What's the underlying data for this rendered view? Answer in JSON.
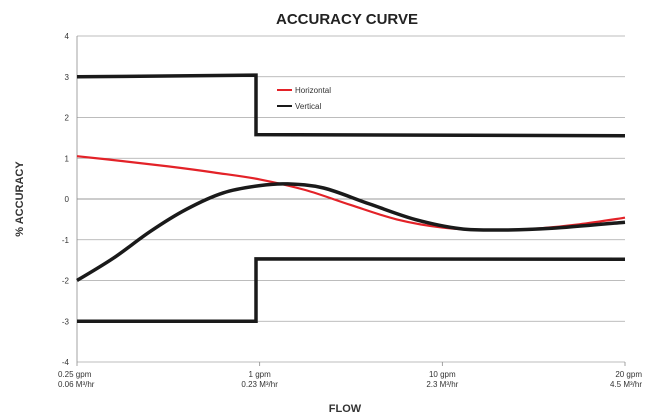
{
  "chart_data": {
    "type": "line",
    "title": "ACCURACY CURVE",
    "xlabel": "FLOW",
    "ylabel": "% ACCURACY",
    "ylim": [
      -4,
      4
    ],
    "yticks": [
      "4",
      "3",
      "2",
      "1",
      "0",
      "-1",
      "-2",
      "-3",
      "-4"
    ],
    "xticks": [
      {
        "line1": "0.25 gpm",
        "line2": "0.06 M³/hr"
      },
      {
        "line1": "1 gpm",
        "line2": "0.23 M³/hr"
      },
      {
        "line1": "10 gpm",
        "line2": "2.3 M³/hr"
      },
      {
        "line1": "20 gpm",
        "line2": "4.5 M³/hr"
      }
    ],
    "x_axis_note": "x positions are in tick-index units: 0 = 0.25 gpm, 1 = 1 gpm, 2 = 10 gpm, 3 = 20 gpm",
    "grid": "horizontal",
    "legend_position": "top-center",
    "series": [
      {
        "name": "Horizontal",
        "color": "#e32228",
        "points": [
          [
            0,
            1.05
          ],
          [
            0.25,
            0.93
          ],
          [
            0.5,
            0.8
          ],
          [
            0.75,
            0.65
          ],
          [
            1.0,
            0.48
          ],
          [
            1.25,
            0.22
          ],
          [
            1.5,
            -0.15
          ],
          [
            1.75,
            -0.5
          ],
          [
            2.0,
            -0.7
          ],
          [
            2.25,
            -0.76
          ],
          [
            2.5,
            -0.73
          ],
          [
            2.75,
            -0.62
          ],
          [
            3.0,
            -0.46
          ]
        ]
      },
      {
        "name": "Vertical",
        "color": "#1a1a1a",
        "points": [
          [
            0,
            -2.0
          ],
          [
            0.2,
            -1.45
          ],
          [
            0.4,
            -0.8
          ],
          [
            0.6,
            -0.25
          ],
          [
            0.8,
            0.15
          ],
          [
            1.0,
            0.33
          ],
          [
            1.15,
            0.37
          ],
          [
            1.35,
            0.27
          ],
          [
            1.6,
            -0.12
          ],
          [
            1.85,
            -0.5
          ],
          [
            2.1,
            -0.73
          ],
          [
            2.35,
            -0.76
          ],
          [
            2.6,
            -0.72
          ],
          [
            3.0,
            -0.57
          ]
        ]
      }
    ],
    "limit_lines": [
      {
        "color": "#1a1a1a",
        "points": [
          [
            0,
            3.0
          ],
          [
            0.98,
            3.04
          ],
          [
            0.98,
            1.58
          ],
          [
            3.0,
            1.55
          ]
        ]
      },
      {
        "color": "#1a1a1a",
        "points": [
          [
            0,
            -3.0
          ],
          [
            0.98,
            -3.0
          ],
          [
            0.98,
            -1.47
          ],
          [
            3.0,
            -1.48
          ]
        ]
      }
    ]
  }
}
